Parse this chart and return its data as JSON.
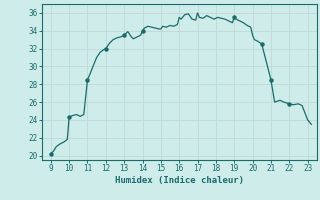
{
  "xlabel": "Humidex (Indice chaleur)",
  "xlim": [
    8.5,
    23.5
  ],
  "ylim": [
    19.5,
    37.0
  ],
  "yticks": [
    20,
    22,
    24,
    26,
    28,
    30,
    32,
    34,
    36
  ],
  "xticks": [
    9,
    10,
    11,
    12,
    13,
    14,
    15,
    16,
    17,
    18,
    19,
    20,
    21,
    22,
    23
  ],
  "bg_color": "#ceecea",
  "line_color": "#1a6b6b",
  "grid_color": "#c0d8d6",
  "x": [
    9.0,
    9.15,
    9.3,
    9.5,
    9.7,
    9.9,
    10.0,
    10.2,
    10.4,
    10.6,
    10.8,
    11.0,
    11.15,
    11.3,
    11.5,
    11.7,
    11.9,
    12.0,
    12.2,
    12.4,
    12.6,
    12.8,
    13.0,
    13.2,
    13.4,
    13.5,
    13.7,
    13.9,
    14.0,
    14.1,
    14.3,
    14.5,
    14.7,
    14.9,
    15.0,
    15.1,
    15.3,
    15.5,
    15.7,
    15.9,
    16.0,
    16.1,
    16.3,
    16.5,
    16.7,
    16.9,
    17.0,
    17.1,
    17.3,
    17.5,
    17.7,
    17.9,
    18.0,
    18.1,
    18.3,
    18.5,
    18.7,
    18.9,
    19.0,
    19.1,
    19.3,
    19.5,
    19.7,
    19.9,
    20.0,
    20.1,
    20.3,
    20.5,
    21.0,
    21.2,
    21.5,
    21.7,
    22.0,
    22.2,
    22.5,
    22.7,
    23.0,
    23.2
  ],
  "y": [
    20.2,
    20.5,
    21.0,
    21.3,
    21.5,
    21.8,
    24.3,
    24.5,
    24.6,
    24.4,
    24.6,
    28.5,
    29.2,
    30.0,
    31.0,
    31.6,
    31.9,
    32.0,
    32.6,
    33.0,
    33.2,
    33.3,
    33.5,
    33.9,
    33.3,
    33.1,
    33.3,
    33.5,
    34.0,
    34.3,
    34.5,
    34.4,
    34.3,
    34.2,
    34.2,
    34.5,
    34.4,
    34.6,
    34.5,
    34.7,
    35.5,
    35.3,
    35.8,
    35.9,
    35.3,
    35.2,
    36.0,
    35.5,
    35.4,
    35.7,
    35.5,
    35.3,
    35.4,
    35.5,
    35.4,
    35.3,
    35.1,
    34.9,
    35.5,
    35.3,
    35.1,
    34.9,
    34.6,
    34.4,
    33.5,
    33.0,
    32.8,
    32.5,
    28.5,
    26.0,
    26.2,
    26.0,
    25.8,
    25.7,
    25.8,
    25.6,
    24.0,
    23.5
  ],
  "marker_x": [
    9.0,
    10.0,
    11.0,
    12.0,
    13.0,
    14.0,
    19.0,
    20.5,
    21.0,
    22.0
  ],
  "marker_y": [
    20.2,
    24.3,
    28.5,
    32.0,
    33.5,
    34.0,
    35.5,
    32.5,
    28.5,
    25.8
  ]
}
